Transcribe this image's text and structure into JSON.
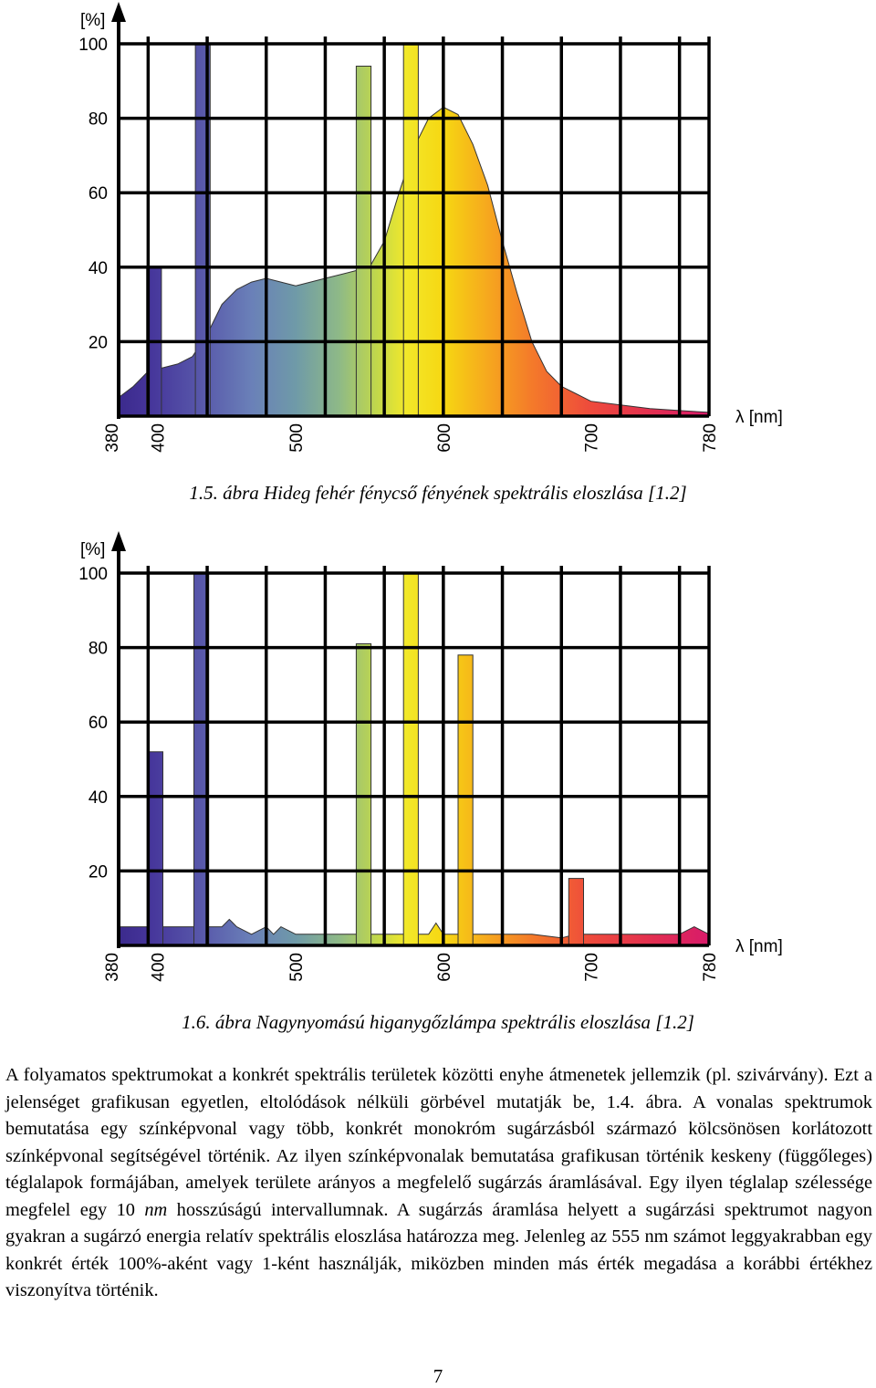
{
  "chart_data": [
    {
      "type": "area",
      "ylabel": "[%]",
      "xlabel": "λ  [nm]",
      "yticks": [
        20,
        40,
        60,
        80,
        100
      ],
      "xticks": [
        380,
        400,
        500,
        600,
        700,
        780
      ],
      "xlim": [
        380,
        780
      ],
      "ylim": [
        0,
        100
      ],
      "grid": true,
      "continuum": [
        [
          380,
          5
        ],
        [
          390,
          8
        ],
        [
          400,
          12
        ],
        [
          410,
          13
        ],
        [
          420,
          14
        ],
        [
          430,
          16
        ],
        [
          440,
          22
        ],
        [
          450,
          30
        ],
        [
          460,
          34
        ],
        [
          470,
          36
        ],
        [
          480,
          37
        ],
        [
          490,
          36
        ],
        [
          500,
          35
        ],
        [
          510,
          36
        ],
        [
          520,
          37
        ],
        [
          530,
          38
        ],
        [
          540,
          39
        ],
        [
          550,
          40
        ],
        [
          560,
          47
        ],
        [
          570,
          60
        ],
        [
          580,
          72
        ],
        [
          590,
          80
        ],
        [
          600,
          83
        ],
        [
          610,
          81
        ],
        [
          620,
          73
        ],
        [
          630,
          62
        ],
        [
          640,
          47
        ],
        [
          650,
          33
        ],
        [
          660,
          20
        ],
        [
          670,
          12
        ],
        [
          680,
          8
        ],
        [
          690,
          6
        ],
        [
          700,
          4
        ],
        [
          720,
          3
        ],
        [
          740,
          2
        ],
        [
          760,
          1.5
        ],
        [
          780,
          1
        ]
      ],
      "lines": [
        {
          "x": 404,
          "value": 40
        },
        {
          "x": 437,
          "value": 100
        },
        {
          "x": 546,
          "value": 94
        },
        {
          "x": 578,
          "value": 100
        }
      ]
    },
    {
      "type": "area",
      "ylabel": "[%]",
      "xlabel": "λ  [nm]",
      "yticks": [
        20,
        40,
        60,
        80,
        100
      ],
      "xticks": [
        380,
        400,
        500,
        600,
        700,
        780
      ],
      "xlim": [
        380,
        780
      ],
      "ylim": [
        0,
        100
      ],
      "grid": true,
      "continuum": [
        [
          380,
          5
        ],
        [
          420,
          5
        ],
        [
          440,
          5
        ],
        [
          450,
          5
        ],
        [
          455,
          7
        ],
        [
          460,
          5
        ],
        [
          465,
          4
        ],
        [
          470,
          3
        ],
        [
          475,
          4
        ],
        [
          480,
          5
        ],
        [
          485,
          3
        ],
        [
          490,
          5
        ],
        [
          495,
          4
        ],
        [
          500,
          3
        ],
        [
          520,
          3
        ],
        [
          540,
          3
        ],
        [
          560,
          3
        ],
        [
          575,
          3
        ],
        [
          590,
          3
        ],
        [
          595,
          6
        ],
        [
          600,
          3
        ],
        [
          610,
          3
        ],
        [
          630,
          3
        ],
        [
          660,
          3
        ],
        [
          680,
          2
        ],
        [
          690,
          3
        ],
        [
          760,
          3
        ],
        [
          770,
          5
        ],
        [
          780,
          3
        ]
      ],
      "lines": [
        {
          "x": 405,
          "value": 52
        },
        {
          "x": 436,
          "value": 100
        },
        {
          "x": 546,
          "value": 81
        },
        {
          "x": 578,
          "value": 100
        },
        {
          "x": 615,
          "value": 78
        },
        {
          "x": 690,
          "value": 18
        }
      ]
    }
  ],
  "captions": {
    "fig1": "1.5. ábra Hideg fehér fénycső fényének spektrális eloszlása [1.2]",
    "fig2": "1.6. ábra Nagynyomású higanygőzlámpa spektrális eloszlása [1.2]"
  },
  "paragraph": {
    "part1": "A folyamatos spektrumokat a konkrét spektrális területek közötti enyhe átmenetek jellemzik (pl. szivárvány). Ezt a jelenséget grafikusan egyetlen, eltolódások nélküli görbével mutatják be, 1.4. ábra. A vonalas spektrumok bemutatása egy színképvonal vagy több, konkrét monokróm sugárzásból származó kölcsönösen korlátozott színképvonal segítségével történik. Az ilyen színképvonalak bemutatása grafikusan történik keskeny (függőleges) téglalapok formájában, amelyek területe arányos a megfelelő sugárzás áramlásával. Egy ilyen téglalap szélessége megfelel egy 10 ",
    "italic": "nm",
    "part2": " hosszúságú intervallumnak. A sugárzás áramlása helyett a sugárzási spektrumot nagyon gyakran a sugárzó energia relatív spektrális eloszlása határozza meg. Jelenleg az 555 nm számot leggyakrabban egy konkrét érték 100%-aként vagy 1-ként használják, miközben minden más érték megadása a korábbi értékhez viszonyítva történik."
  },
  "page_number": "7"
}
